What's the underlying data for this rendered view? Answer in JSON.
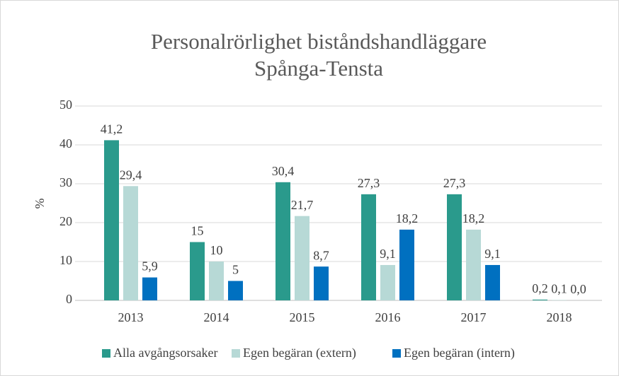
{
  "chart_data": {
    "type": "bar",
    "title": [
      "Personalrörlighet biståndshandläggare",
      "Spånga-Tensta"
    ],
    "y_label": "%",
    "categories": [
      "2013",
      "2014",
      "2015",
      "2016",
      "2017",
      "2018"
    ],
    "series": [
      {
        "name": "Alla avgångsorsaker",
        "color": "#2a9a8c",
        "values": [
          41.2,
          15,
          30.4,
          27.3,
          27.3,
          0.2
        ],
        "value_labels": [
          "41,2",
          "15",
          "30,4",
          "27,3",
          "27,3",
          "0,2"
        ]
      },
      {
        "name": "Egen begäran (extern)",
        "color": "#b7d9d6",
        "values": [
          29.4,
          10,
          21.7,
          9.1,
          18.2,
          0.1
        ],
        "value_labels": [
          "29,4",
          "10",
          "21,7",
          "9,1",
          "18,2",
          "0,1"
        ]
      },
      {
        "name": "Egen begäran (intern)",
        "color": "#0070c0",
        "values": [
          5.9,
          5,
          8.7,
          18.2,
          9.1,
          0.0
        ],
        "value_labels": [
          "5,9",
          "5",
          "8,7",
          "18,2",
          "9,1",
          "0,0"
        ]
      }
    ],
    "ylim": [
      0,
      50
    ],
    "yticks": [
      0,
      10,
      20,
      30,
      40,
      50
    ],
    "grid": true,
    "legend": "bottom"
  }
}
